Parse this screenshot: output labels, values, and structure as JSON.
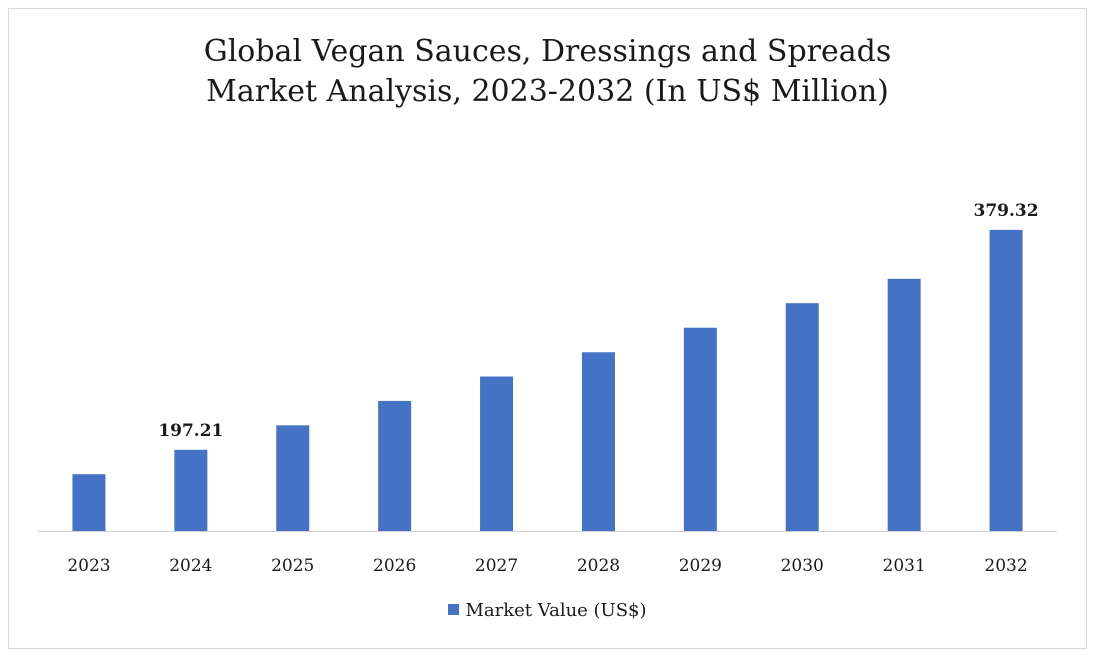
{
  "chart_data": {
    "type": "bar",
    "title_lines": [
      "Global Vegan Sauces, Dressings and Spreads",
      "Market Analysis, 2023-2032 (In US$ Million)"
    ],
    "categories": [
      "2023",
      "2024",
      "2025",
      "2026",
      "2027",
      "2028",
      "2029",
      "2030",
      "2031",
      "2032"
    ],
    "series": [
      {
        "name": "Market Value (US$)",
        "values": [
          177.0,
          197.21,
          217.5,
          237.7,
          257.9,
          278.0,
          298.3,
          318.6,
          338.8,
          379.32
        ],
        "color": "#4472c4"
      }
    ],
    "data_labels": [
      {
        "category": "2024",
        "text": "197.21"
      },
      {
        "category": "2032",
        "text": "379.32"
      }
    ],
    "xlabel": "",
    "ylabel": "",
    "ylim": [
      130,
      385
    ],
    "y_axis_visible": false,
    "grid": false,
    "legend_position": "bottom"
  }
}
